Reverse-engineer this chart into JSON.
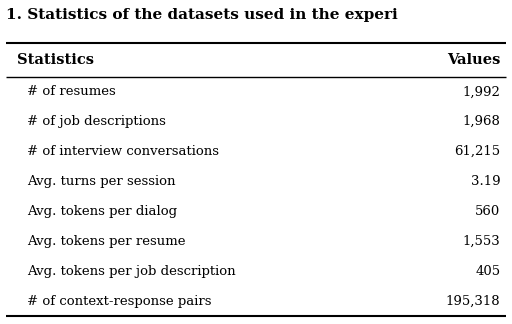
{
  "title": "1. Statistics of the datasets used in the experi",
  "header": [
    "Statistics",
    "Values"
  ],
  "rows": [
    [
      "# of resumes",
      "1,992"
    ],
    [
      "# of job descriptions",
      "1,968"
    ],
    [
      "# of interview conversations",
      "61,215"
    ],
    [
      "Avg. turns per session",
      "3.19"
    ],
    [
      "Avg. tokens per dialog",
      "560"
    ],
    [
      "Avg. tokens per resume",
      "1,553"
    ],
    [
      "Avg. tokens per job description",
      "405"
    ],
    [
      "# of context-response pairs",
      "195,318"
    ]
  ],
  "bg_color": "#ffffff",
  "text_color": "#000000",
  "header_fontsize": 10.5,
  "row_fontsize": 9.5,
  "title_fontsize": 11,
  "title_color": "#000000",
  "line_color": "#000000"
}
